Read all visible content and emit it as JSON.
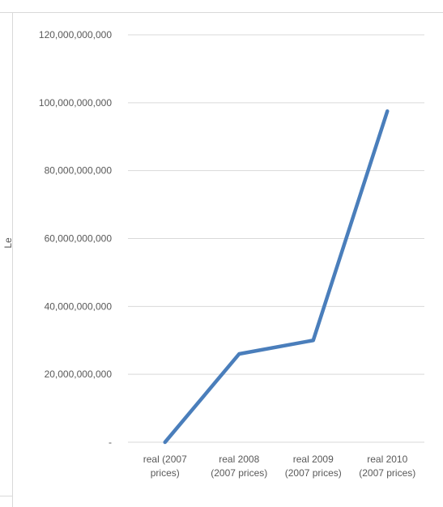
{
  "chart_data": {
    "type": "line",
    "title": "",
    "xlabel": "",
    "ylabel": "Le",
    "categories": [
      [
        "real (2007",
        "prices)"
      ],
      [
        "real 2008",
        "(2007 prices)"
      ],
      [
        "real 2009",
        "(2007 prices)"
      ],
      [
        "real 2010",
        "(2007 prices)"
      ]
    ],
    "series": [
      {
        "values": [
          0,
          26000000000,
          30000000000,
          97500000000
        ]
      }
    ],
    "ylim": [
      0,
      120000000000
    ],
    "yticks": [
      0,
      20000000000,
      40000000000,
      60000000000,
      80000000000,
      100000000000,
      120000000000
    ],
    "ytick_labels": [
      "-",
      "20,000,000,000",
      "40,000,000,000",
      "60,000,000,000",
      "80,000,000,000",
      "100,000,000,000",
      "120,000,000,000"
    ],
    "grid": true,
    "legend": "none",
    "colors": {
      "line": "#4a7ebb",
      "grid": "#d9d9d9",
      "text": "#595959"
    }
  }
}
